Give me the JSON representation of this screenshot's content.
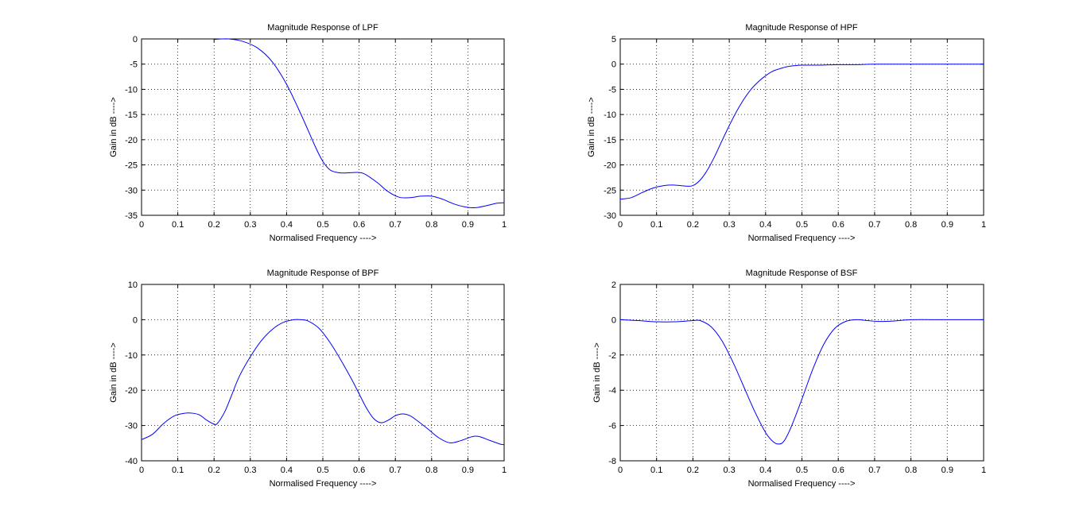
{
  "figure": {
    "background": "#ffffff",
    "line_color": "#0000ff",
    "grid_color": "#000000"
  },
  "chart_data": [
    {
      "type": "line",
      "title": "Magnitude Response of LPF",
      "xlabel": "Normalised Frequency ---->",
      "ylabel": "Gain in dB ---->",
      "xlim": [
        0,
        1
      ],
      "ylim": [
        -35,
        0
      ],
      "xticks": [
        0,
        0.1,
        0.2,
        0.3,
        0.4,
        0.5,
        0.6,
        0.7,
        0.8,
        0.9,
        1
      ],
      "yticks": [
        -35,
        -30,
        -25,
        -20,
        -15,
        -10,
        -5,
        0
      ],
      "grid": true,
      "series": [
        {
          "x": [
            0.2,
            0.24,
            0.28,
            0.32,
            0.36,
            0.4,
            0.44,
            0.48,
            0.5,
            0.52,
            0.54,
            0.56,
            0.6,
            0.62,
            0.65,
            0.68,
            0.71,
            0.74,
            0.77,
            0.8,
            0.83,
            0.86,
            0.89,
            0.92,
            0.95,
            0.98,
            1.0
          ],
          "y": [
            -0.1,
            0,
            -0.5,
            -1.8,
            -4.5,
            -9,
            -15,
            -21.5,
            -24.3,
            -26,
            -26.5,
            -26.6,
            -26.5,
            -27,
            -28.5,
            -30.3,
            -31.4,
            -31.5,
            -31.2,
            -31.2,
            -31.8,
            -32.7,
            -33.3,
            -33.5,
            -33.1,
            -32.6,
            -32.5
          ]
        }
      ]
    },
    {
      "type": "line",
      "title": "Magnitude Response of HPF",
      "xlabel": "Normalised Frequency ---->",
      "ylabel": "Gain in dB ---->",
      "xlim": [
        0,
        1
      ],
      "ylim": [
        -30,
        5
      ],
      "xticks": [
        0,
        0.1,
        0.2,
        0.3,
        0.4,
        0.5,
        0.6,
        0.7,
        0.8,
        0.9,
        1
      ],
      "yticks": [
        -30,
        -25,
        -20,
        -15,
        -10,
        -5,
        0,
        5
      ],
      "grid": true,
      "series": [
        {
          "x": [
            0,
            0.03,
            0.06,
            0.09,
            0.12,
            0.15,
            0.18,
            0.2,
            0.22,
            0.24,
            0.26,
            0.28,
            0.3,
            0.32,
            0.34,
            0.36,
            0.38,
            0.4,
            0.42,
            0.44,
            0.46,
            0.48,
            0.5,
            0.55,
            0.6,
            0.65,
            0.7,
            0.8,
            0.9,
            1.0
          ],
          "y": [
            -26.8,
            -26.5,
            -25.5,
            -24.6,
            -24.1,
            -24,
            -24.2,
            -24.1,
            -23,
            -21,
            -18.3,
            -15.2,
            -12.2,
            -9.4,
            -7,
            -5,
            -3.5,
            -2.3,
            -1.4,
            -0.9,
            -0.5,
            -0.3,
            -0.2,
            -0.2,
            -0.1,
            -0.1,
            0,
            0,
            0,
            0
          ]
        }
      ]
    },
    {
      "type": "line",
      "title": "Magnitude Response of BPF",
      "xlabel": "Normalised Frequency ---->",
      "ylabel": "Gain in dB ---->",
      "xlim": [
        0,
        1
      ],
      "ylim": [
        -40,
        10
      ],
      "xticks": [
        0,
        0.1,
        0.2,
        0.3,
        0.4,
        0.5,
        0.6,
        0.7,
        0.8,
        0.9,
        1
      ],
      "yticks": [
        -40,
        -30,
        -20,
        -10,
        0,
        10
      ],
      "grid": true,
      "series": [
        {
          "x": [
            0,
            0.03,
            0.06,
            0.09,
            0.12,
            0.14,
            0.16,
            0.18,
            0.2,
            0.21,
            0.23,
            0.25,
            0.27,
            0.3,
            0.33,
            0.36,
            0.39,
            0.42,
            0.44,
            0.46,
            0.49,
            0.52,
            0.55,
            0.58,
            0.6,
            0.62,
            0.64,
            0.66,
            0.68,
            0.7,
            0.72,
            0.74,
            0.76,
            0.79,
            0.82,
            0.85,
            0.88,
            0.91,
            0.93,
            0.96,
            0.99,
            1.0
          ],
          "y": [
            -34,
            -32.5,
            -29.5,
            -27.3,
            -26.5,
            -26.5,
            -27,
            -28.5,
            -29.6,
            -29.3,
            -26,
            -21,
            -16,
            -10.5,
            -6,
            -2.8,
            -0.8,
            0,
            0,
            -0.4,
            -2.5,
            -6.5,
            -11.5,
            -17,
            -21,
            -25,
            -28,
            -29.2,
            -28.5,
            -27.2,
            -26.7,
            -27.2,
            -28.6,
            -31,
            -33.5,
            -34.9,
            -34.3,
            -33.2,
            -33.1,
            -34.2,
            -35.3,
            -35.4
          ]
        }
      ]
    },
    {
      "type": "line",
      "title": "Magnitude Response of BSF",
      "xlabel": "Normalised Frequency ---->",
      "ylabel": "Gain in dB ---->",
      "xlim": [
        0,
        1
      ],
      "ylim": [
        -8,
        2
      ],
      "xticks": [
        0,
        0.1,
        0.2,
        0.3,
        0.4,
        0.5,
        0.6,
        0.7,
        0.8,
        0.9,
        1
      ],
      "yticks": [
        -8,
        -6,
        -4,
        -2,
        0,
        2
      ],
      "grid": true,
      "series": [
        {
          "x": [
            0,
            0.05,
            0.1,
            0.15,
            0.2,
            0.22,
            0.25,
            0.28,
            0.31,
            0.34,
            0.37,
            0.4,
            0.42,
            0.435,
            0.45,
            0.47,
            0.5,
            0.53,
            0.56,
            0.59,
            0.62,
            0.65,
            0.68,
            0.71,
            0.75,
            0.8,
            0.9,
            1.0
          ],
          "y": [
            0,
            -0.05,
            -0.12,
            -0.12,
            -0.05,
            -0.05,
            -0.4,
            -1.2,
            -2.4,
            -3.8,
            -5.2,
            -6.4,
            -6.9,
            -7.05,
            -6.9,
            -6.1,
            -4.5,
            -2.8,
            -1.4,
            -0.5,
            -0.1,
            0,
            -0.05,
            -0.1,
            -0.08,
            0,
            0,
            0
          ]
        }
      ]
    }
  ]
}
